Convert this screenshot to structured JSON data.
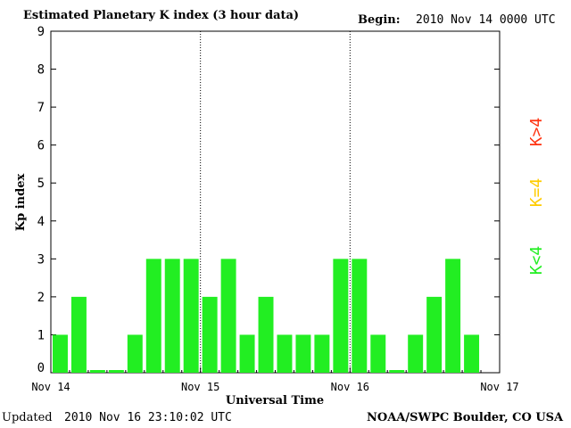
{
  "header": {
    "title": "Estimated Planetary K index (3 hour data)",
    "begin_label": "Begin:",
    "begin_value": "2010 Nov 14 0000 UTC"
  },
  "footer": {
    "updated_label": "Updated",
    "updated_value": "2010 Nov 16 23:10:02 UTC",
    "source": "NOAA/SWPC Boulder, CO USA"
  },
  "chart_data": {
    "type": "bar",
    "title": "Estimated Planetary K index (3 hour data)",
    "xlabel": "Universal Time",
    "ylabel": "Kp index",
    "ylim": [
      0,
      9
    ],
    "yticks": [
      "0",
      "1",
      "2",
      "3",
      "4",
      "5",
      "6",
      "7",
      "8",
      "9"
    ],
    "xticks": [
      "Nov 14",
      "Nov 15",
      "Nov 16",
      "Nov 17"
    ],
    "interval_hours": 3,
    "values": [
      1,
      2,
      0,
      0,
      1,
      3,
      3,
      3,
      2,
      3,
      1,
      2,
      1,
      1,
      1,
      3,
      3,
      1,
      0,
      1,
      2,
      3,
      1
    ],
    "colors": {
      "below_4": "#22ee22",
      "equal_4": "#ffcc00",
      "above_4": "#ff3311"
    },
    "legend": [
      "K<4",
      "K=4",
      "K>4"
    ],
    "grid": false
  }
}
